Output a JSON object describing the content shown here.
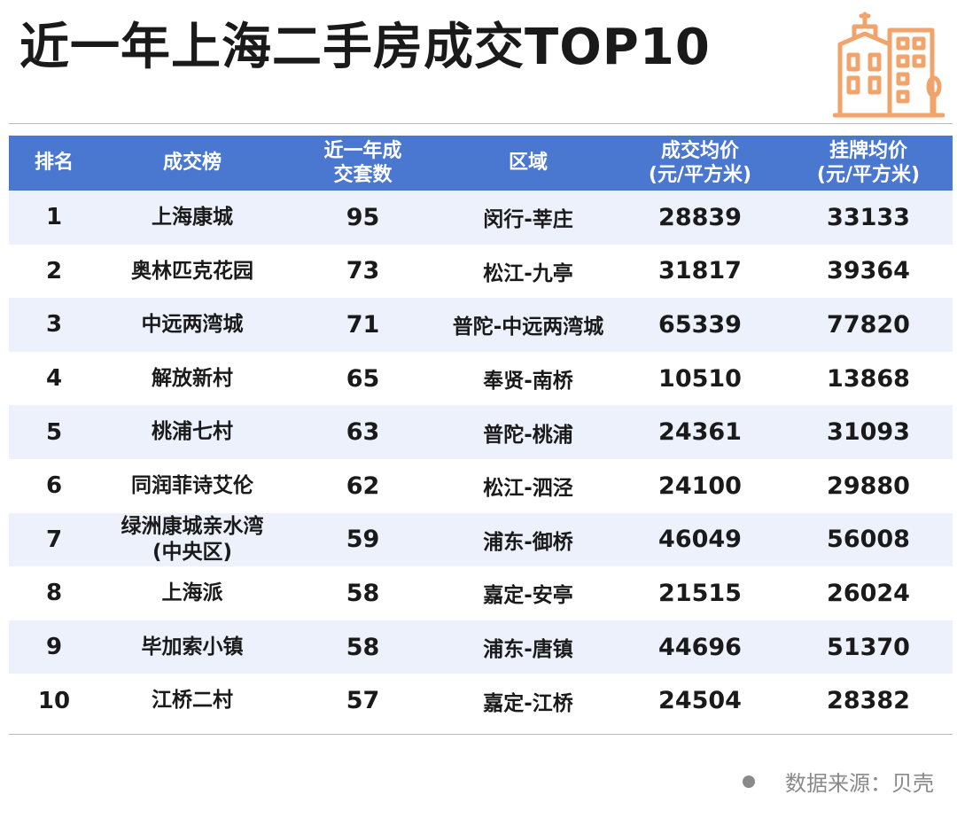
{
  "title": "近一年上海二手房成交TOP10",
  "colors": {
    "header_bg": "#4a77d0",
    "row_stripe": "#ecf1fb",
    "logo": "#f0a36a"
  },
  "logo_icon": "buildings-icon",
  "table": {
    "headers": [
      [
        "排名"
      ],
      [
        "成交榜"
      ],
      [
        "近一年成",
        "交套数"
      ],
      [
        "区域"
      ],
      [
        "成交均价",
        "(元/平方米)"
      ],
      [
        "挂牌均价",
        "(元/平方米)"
      ]
    ],
    "rows": [
      {
        "rank": "1",
        "name": [
          "上海康城"
        ],
        "deals": "95",
        "area": "闵行-莘庄",
        "deal_price": "28839",
        "list_price": "33133"
      },
      {
        "rank": "2",
        "name": [
          "奥林匹克花园"
        ],
        "deals": "73",
        "area": "松江-九亭",
        "deal_price": "31817",
        "list_price": "39364"
      },
      {
        "rank": "3",
        "name": [
          "中远两湾城"
        ],
        "deals": "71",
        "area": "普陀-中远两湾城",
        "deal_price": "65339",
        "list_price": "77820"
      },
      {
        "rank": "4",
        "name": [
          "解放新村"
        ],
        "deals": "65",
        "area": "奉贤-南桥",
        "deal_price": "10510",
        "list_price": "13868"
      },
      {
        "rank": "5",
        "name": [
          "桃浦七村"
        ],
        "deals": "63",
        "area": "普陀-桃浦",
        "deal_price": "24361",
        "list_price": "31093"
      },
      {
        "rank": "6",
        "name": [
          "同润菲诗艾伦"
        ],
        "deals": "62",
        "area": "松江-泗泾",
        "deal_price": "24100",
        "list_price": "29880"
      },
      {
        "rank": "7",
        "name": [
          "绿洲康城亲水湾",
          "(中央区)"
        ],
        "deals": "59",
        "area": "浦东-御桥",
        "deal_price": "46049",
        "list_price": "56008"
      },
      {
        "rank": "8",
        "name": [
          "上海派"
        ],
        "deals": "58",
        "area": "嘉定-安亭",
        "deal_price": "21515",
        "list_price": "26024"
      },
      {
        "rank": "9",
        "name": [
          "毕加索小镇"
        ],
        "deals": "58",
        "area": "浦东-唐镇",
        "deal_price": "44696",
        "list_price": "51370"
      },
      {
        "rank": "10",
        "name": [
          "江桥二村"
        ],
        "deals": "57",
        "area": "嘉定-江桥",
        "deal_price": "24504",
        "list_price": "28382"
      }
    ]
  },
  "source": "数据来源：贝壳"
}
